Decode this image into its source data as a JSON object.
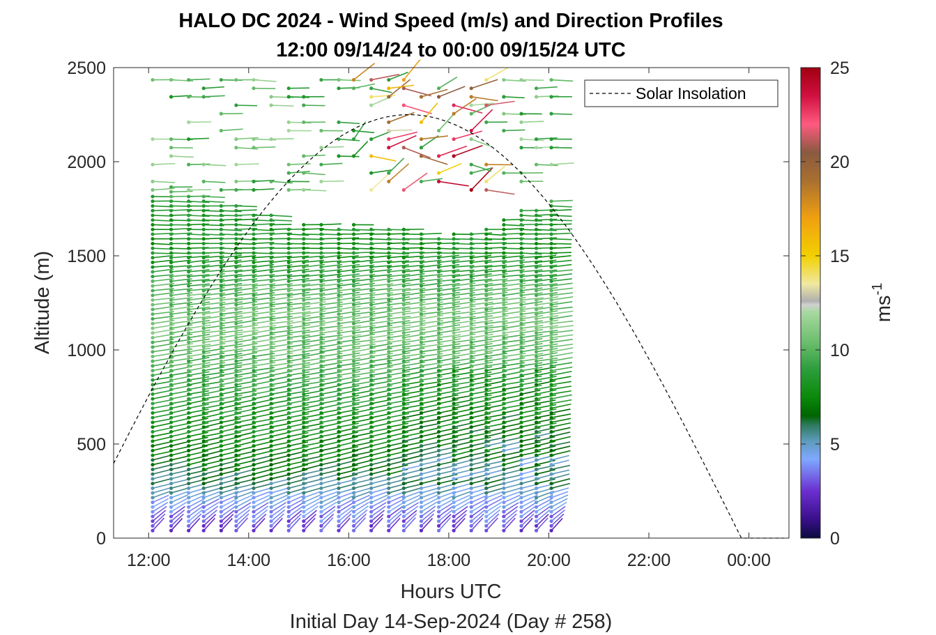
{
  "chart_data": {
    "type": "scatter",
    "title": "HALO DC 2024 - Wind Speed (m/s) and Direction Profiles",
    "subtitle": "12:00 09/14/24 to 00:00 09/15/24  UTC",
    "xlabel": "Hours UTC",
    "ylabel": "Altitude (m)",
    "footer": "Initial Day 14-Sep-2024 (Day # 258)",
    "xlim": [
      11.3,
      24.8
    ],
    "ylim": [
      0,
      2500
    ],
    "x_ticks": [
      12,
      14,
      16,
      18,
      20,
      22,
      24
    ],
    "x_tick_labels": [
      "12:00",
      "14:00",
      "16:00",
      "18:00",
      "20:00",
      "22:00",
      "00:00"
    ],
    "y_ticks": [
      0,
      500,
      1000,
      1500,
      2000,
      2500
    ],
    "y_tick_labels": [
      "0",
      "500",
      "1000",
      "1500",
      "2000",
      "2500"
    ],
    "grid": false,
    "legend": {
      "entries": [
        "Solar Insolation"
      ],
      "placement": "top-right",
      "style": "dashed black line"
    },
    "colorbar": {
      "label": "ms",
      "label_exponent": "-1",
      "range": [
        0,
        25
      ],
      "ticks": [
        0,
        5,
        10,
        15,
        20,
        25
      ],
      "tick_labels": [
        "0",
        "5",
        "10",
        "15",
        "20",
        "25"
      ],
      "colormap": [
        [
          0,
          "#0a0a40"
        ],
        [
          1,
          "#3a0f8a"
        ],
        [
          2.5,
          "#6a2fd0"
        ],
        [
          4.2,
          "#7fa8ff"
        ],
        [
          5.2,
          "#5b9ab8"
        ],
        [
          6,
          "#2f7a60"
        ],
        [
          6.5,
          "#006400"
        ],
        [
          7.5,
          "#0a8a0a"
        ],
        [
          9,
          "#2e9e3e"
        ],
        [
          10.5,
          "#6fbf70"
        ],
        [
          12,
          "#a8d8a0"
        ],
        [
          12.4,
          "#d0d0d0"
        ],
        [
          12.6,
          "#b0b0b0"
        ],
        [
          13.5,
          "#f0e8a0"
        ],
        [
          15,
          "#f2d000"
        ],
        [
          17,
          "#f0a010"
        ],
        [
          19,
          "#a87030"
        ],
        [
          20.5,
          "#8a5a40"
        ],
        [
          22,
          "#ff5a80"
        ],
        [
          23.5,
          "#d01040"
        ],
        [
          25,
          "#a00010"
        ]
      ]
    },
    "solar_insolation": {
      "sunrise_hour": 10.55,
      "solar_noon_hour": 17.2,
      "sunset_hour": 23.85,
      "peak_altitude_equiv": 2250,
      "end_hour": 24.7
    },
    "wind_profiles": {
      "times_hours": [
        12.08,
        12.45,
        12.8,
        13.1,
        13.45,
        13.75,
        14.1,
        14.45,
        14.8,
        15.1,
        15.45,
        15.8,
        16.1,
        16.45,
        16.8,
        17.1,
        17.45,
        17.8,
        18.1,
        18.45,
        18.75,
        19.1,
        19.45,
        19.75,
        20.05
      ],
      "lower_top_altitude_m": [
        1830,
        1880,
        1830,
        1830,
        1780,
        1780,
        1730,
        1730,
        1660,
        1680,
        1680,
        1650,
        1680,
        1650,
        1640,
        1650,
        1620,
        1610,
        1620,
        1620,
        1640,
        1700,
        1740,
        1760,
        1790
      ],
      "level_spacing_m": 50,
      "direction_note": "barbs pointing generally westward (easterly wind) aloft, veering with height near surface",
      "speed_by_altitude_ms": [
        [
          0,
          2.5
        ],
        [
          50,
          2.8
        ],
        [
          100,
          3.5
        ],
        [
          200,
          4.5
        ],
        [
          350,
          6.5
        ],
        [
          500,
          7.5
        ],
        [
          700,
          8.5
        ],
        [
          900,
          9.8
        ],
        [
          1100,
          10.5
        ],
        [
          1300,
          10.0
        ],
        [
          1500,
          8.0
        ],
        [
          1700,
          8.5
        ],
        [
          1900,
          10.0
        ]
      ],
      "upper_cluster_altitude_m": [
        1850,
        2460
      ],
      "upper_cluster_speed_ms": [
        8,
        25
      ]
    }
  }
}
